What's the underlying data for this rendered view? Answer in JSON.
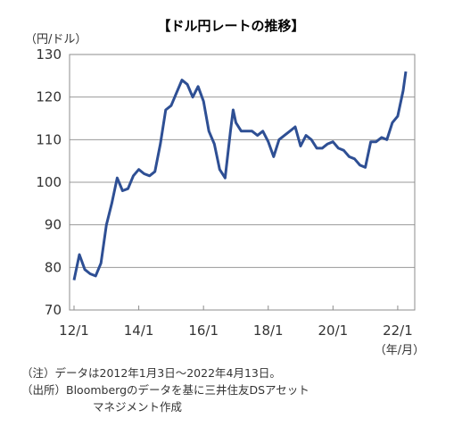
{
  "chart_data": {
    "type": "line",
    "title": "【ドル円レートの推移】",
    "y_unit": "（円/ドル）",
    "x_unit": "（年/月）",
    "ylim": [
      70,
      130
    ],
    "y_ticks": [
      70,
      80,
      90,
      100,
      110,
      120,
      130
    ],
    "x_ticks": [
      "12/1",
      "14/1",
      "16/1",
      "18/1",
      "20/1",
      "22/1"
    ],
    "grid": true,
    "line_color": "#2e4f94",
    "series": [
      {
        "x": [
          "2012-01",
          "2012-03",
          "2012-05",
          "2012-07",
          "2012-09",
          "2012-11",
          "2013-01",
          "2013-03",
          "2013-05",
          "2013-07",
          "2013-09",
          "2013-11",
          "2014-01",
          "2014-03",
          "2014-05",
          "2014-07",
          "2014-09",
          "2014-11",
          "2015-01",
          "2015-03",
          "2015-05",
          "2015-07",
          "2015-09",
          "2015-11",
          "2016-01",
          "2016-03",
          "2016-05",
          "2016-07",
          "2016-09",
          "2016-11",
          "2016-12",
          "2017-01",
          "2017-03",
          "2017-05",
          "2017-07",
          "2017-09",
          "2017-11",
          "2018-01",
          "2018-03",
          "2018-05",
          "2018-07",
          "2018-09",
          "2018-11",
          "2019-01",
          "2019-03",
          "2019-05",
          "2019-07",
          "2019-09",
          "2019-11",
          "2020-01",
          "2020-03",
          "2020-05",
          "2020-07",
          "2020-09",
          "2020-11",
          "2021-01",
          "2021-03",
          "2021-05",
          "2021-07",
          "2021-09",
          "2021-11",
          "2022-01",
          "2022-03",
          "2022-04"
        ],
        "values": [
          77,
          83,
          79.5,
          78.5,
          78,
          81,
          90,
          95,
          101,
          98,
          98.5,
          101.5,
          103,
          102,
          101.5,
          102.5,
          109,
          117,
          118,
          121,
          124,
          123,
          120,
          122.5,
          119,
          112,
          109,
          103,
          101,
          112,
          117,
          114,
          112,
          112,
          112,
          111,
          112,
          109.5,
          106,
          110,
          111,
          112,
          113,
          108.5,
          111,
          110,
          108,
          108,
          109,
          109.5,
          108,
          107.5,
          106,
          105.5,
          104,
          103.5,
          109.5,
          109.5,
          110.5,
          110,
          114,
          115.5,
          121.5,
          126
        ]
      }
    ]
  },
  "notes": [
    "（注）データは2012年1月3日～2022年4月13日。",
    "（出所）Bloombergのデータを基に三井住友DSアセット",
    "マネジメント作成"
  ]
}
